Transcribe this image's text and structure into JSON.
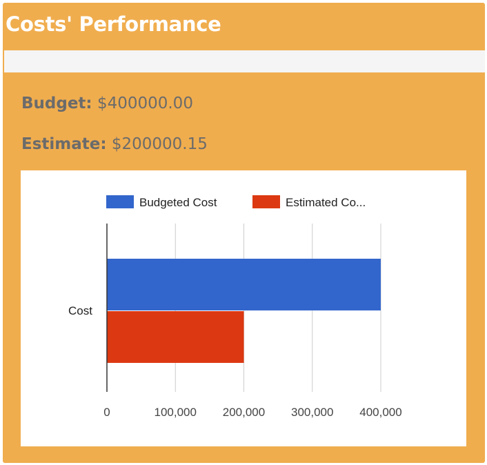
{
  "panel": {
    "title": "Costs' Performance"
  },
  "stats": {
    "budget": {
      "label": "Budget:",
      "value": "$400000.00"
    },
    "estimate": {
      "label": "Estimate:",
      "value": "$200000.15"
    }
  },
  "colors": {
    "panel_background": "#f0ad4e",
    "title_text": "#ffffff",
    "stat_text": "#6b6b6b",
    "budgeted_series": "#3366cc",
    "estimated_series": "#dc3912",
    "gridline": "#cccccc",
    "axis": "#333333"
  },
  "chart_data": {
    "type": "bar",
    "orientation": "horizontal",
    "categories": [
      "Cost"
    ],
    "series": [
      {
        "name": "Budgeted Cost",
        "legend_label": "Budgeted Cost",
        "values": [
          400000
        ],
        "color": "#3366cc"
      },
      {
        "name": "Estimated Cost",
        "legend_label": "Estimated Co...",
        "values": [
          200000.15
        ],
        "color": "#dc3912"
      }
    ],
    "xlim": [
      0,
      400000
    ],
    "x_ticks": [
      0,
      100000,
      200000,
      300000,
      400000
    ],
    "x_tick_labels": [
      "0",
      "100,000",
      "200,000",
      "300,000",
      "400,000"
    ],
    "grid": true,
    "legend_position": "top",
    "title": "",
    "xlabel": "",
    "ylabel": ""
  }
}
